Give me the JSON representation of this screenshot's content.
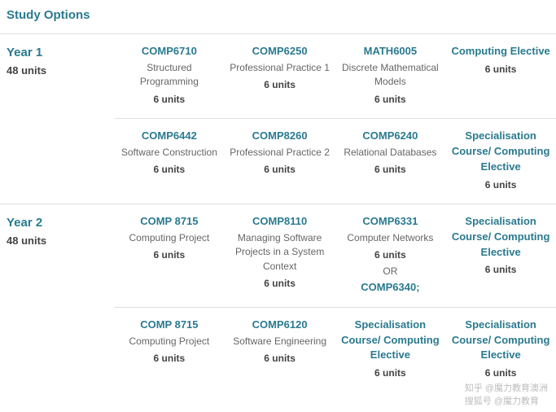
{
  "title": "Study Options",
  "colors": {
    "accent": "#2a7a8f",
    "text": "#444444",
    "muted": "#666666",
    "divider": "#e0e0e0",
    "background": "#ffffff"
  },
  "years": [
    {
      "label": "Year 1",
      "units": "48 units",
      "semesters": [
        [
          {
            "code": "COMP6710",
            "name": "Structured Programming",
            "units": "6 units"
          },
          {
            "code": "COMP6250",
            "name": "Professional Practice 1",
            "units": "6 units"
          },
          {
            "code": "MATH6005",
            "name": "Discrete Mathematical Models",
            "units": "6 units"
          },
          {
            "code": "Computing Elective",
            "name": "",
            "units": "6 units"
          }
        ],
        [
          {
            "code": "COMP6442",
            "name": "Software Construction",
            "units": "6 units"
          },
          {
            "code": "COMP8260",
            "name": "Professional Practice 2",
            "units": "6 units"
          },
          {
            "code": "COMP6240",
            "name": "Relational Databases",
            "units": "6 units"
          },
          {
            "code": "Specialisation Course/ Computing Elective",
            "name": "",
            "units": "6 units"
          }
        ]
      ]
    },
    {
      "label": "Year 2",
      "units": "48 units",
      "semesters": [
        [
          {
            "code": "COMP 8715",
            "name": "Computing Project",
            "units": "6 units"
          },
          {
            "code": "COMP8110",
            "name": "Managing Software Projects in a System Context",
            "units": "6 units"
          },
          {
            "code": "COMP6331",
            "name": "Computer Networks",
            "units": "6 units",
            "or": "OR",
            "alt": "COMP6340;"
          },
          {
            "code": "Specialisation Course/ Computing Elective",
            "name": "",
            "units": "6 units"
          }
        ],
        [
          {
            "code": "COMP 8715",
            "name": "Computing Project",
            "units": "6 units"
          },
          {
            "code": "COMP6120",
            "name": "Software Engineering",
            "units": "6 units"
          },
          {
            "code": "Specialisation Course/ Computing Elective",
            "name": "",
            "units": "6 units"
          },
          {
            "code": "Specialisation Course/ Computing Elective",
            "name": "",
            "units": "6 units"
          }
        ]
      ]
    }
  ],
  "watermark": {
    "line1": "知乎 @魔力教育澳洲",
    "line2": "搜狐号 @魔力教育"
  }
}
